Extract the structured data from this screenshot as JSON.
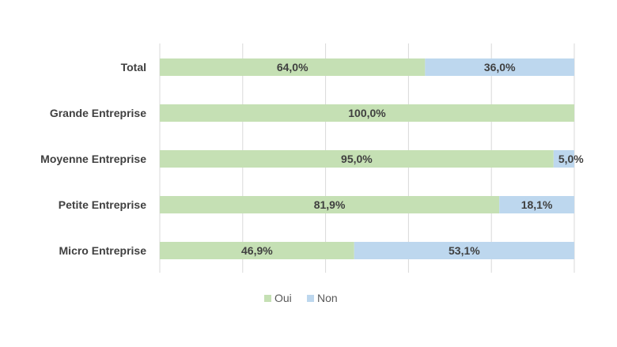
{
  "chart_data": {
    "type": "bar",
    "orientation": "horizontal",
    "stacked": true,
    "categories": [
      "Total",
      "Grande Entreprise",
      "Moyenne Entreprise",
      "Petite Entreprise",
      "Micro Entreprise"
    ],
    "series": [
      {
        "name": "Oui",
        "color": "#c5e0b4",
        "values": [
          64.0,
          100.0,
          95.0,
          81.9,
          46.9
        ],
        "labels": [
          "64,0%",
          "100,0%",
          "95,0%",
          "81,9%",
          "46,9%"
        ]
      },
      {
        "name": "Non",
        "color": "#bdd7ee",
        "values": [
          36.0,
          0,
          5.0,
          18.1,
          53.1
        ],
        "labels": [
          "36,0%",
          "",
          "5,0%",
          "18,1%",
          "53,1%"
        ]
      }
    ],
    "xlim": [
      0,
      100
    ],
    "grid": true,
    "legend_position": "bottom",
    "title": "",
    "xlabel": "",
    "ylabel": ""
  }
}
